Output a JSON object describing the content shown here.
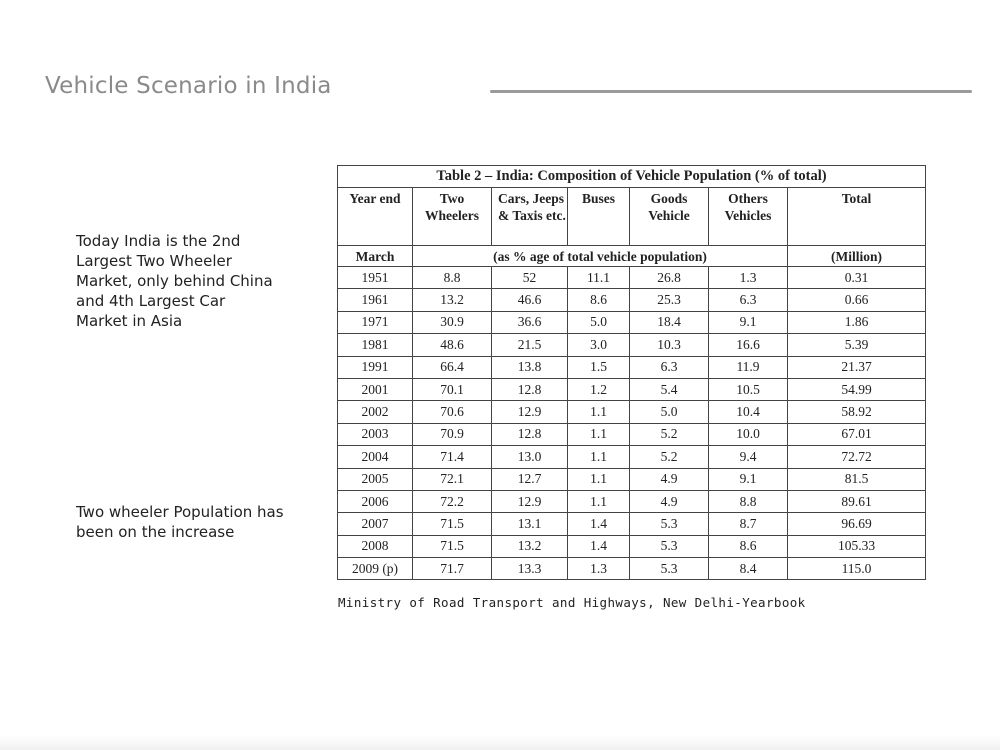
{
  "slide": {
    "title": "Vehicle Scenario in India",
    "notes": [
      "Today India is the 2nd Largest Two Wheeler Market, only behind China and 4th Largest Car Market in Asia",
      "Two wheeler Population has  been on the increase"
    ],
    "source": "Ministry of Road Transport and Highways, New Delhi-Yearbook"
  },
  "table": {
    "caption": "Table 2 – India: Composition of Vehicle Population (% of total)",
    "headers": [
      "Year end",
      "Two Wheelers",
      "Cars, Jeeps & Taxis etc.",
      "Buses",
      "Goods Vehicle",
      "Others Vehicles",
      "Total"
    ],
    "subheader": {
      "first": "March",
      "middle": "(as % age of total vehicle population)",
      "last": "(Million)"
    },
    "rows": [
      [
        "1951",
        "8.8",
        "52",
        "11.1",
        "26.8",
        "1.3",
        "0.31"
      ],
      [
        "1961",
        "13.2",
        "46.6",
        "8.6",
        "25.3",
        "6.3",
        "0.66"
      ],
      [
        "1971",
        "30.9",
        "36.6",
        "5.0",
        "18.4",
        "9.1",
        "1.86"
      ],
      [
        "1981",
        "48.6",
        "21.5",
        "3.0",
        "10.3",
        "16.6",
        "5.39"
      ],
      [
        "1991",
        "66.4",
        "13.8",
        "1.5",
        "6.3",
        "11.9",
        "21.37"
      ],
      [
        "2001",
        "70.1",
        "12.8",
        "1.2",
        "5.4",
        "10.5",
        "54.99"
      ],
      [
        "2002",
        "70.6",
        "12.9",
        "1.1",
        "5.0",
        "10.4",
        "58.92"
      ],
      [
        "2003",
        "70.9",
        "12.8",
        "1.1",
        "5.2",
        "10.0",
        "67.01"
      ],
      [
        "2004",
        "71.4",
        "13.0",
        "1.1",
        "5.2",
        "9.4",
        "72.72"
      ],
      [
        "2005",
        "72.1",
        "12.7",
        "1.1",
        "4.9",
        "9.1",
        "81.5"
      ],
      [
        "2006",
        "72.2",
        "12.9",
        "1.1",
        "4.9",
        "8.8",
        "89.61"
      ],
      [
        "2007",
        "71.5",
        "13.1",
        "1.4",
        "5.3",
        "8.7",
        "96.69"
      ],
      [
        "2008",
        "71.5",
        "13.2",
        "1.4",
        "5.3",
        "8.6",
        "105.33"
      ],
      [
        "2009 (p)",
        "71.7",
        "13.3",
        "1.3",
        "5.3",
        "8.4",
        "115.0"
      ]
    ]
  }
}
